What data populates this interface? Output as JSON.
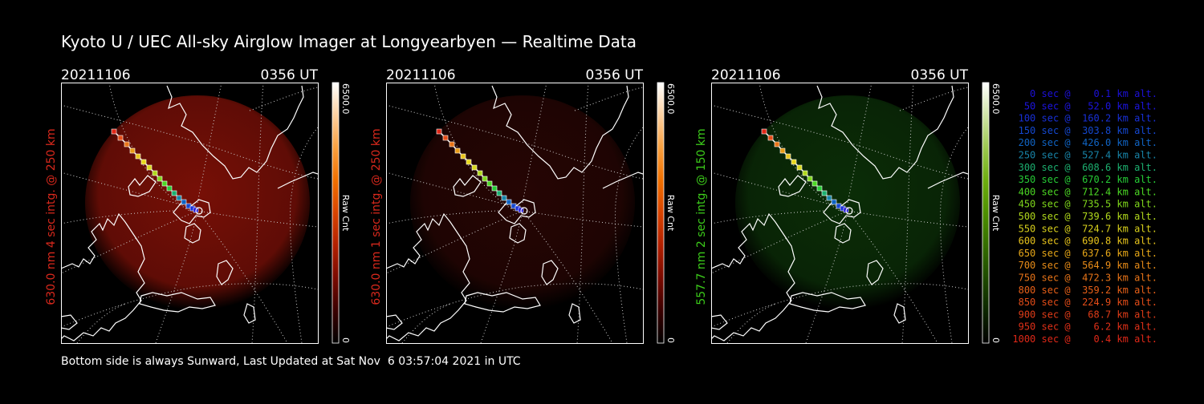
{
  "title": "Kyoto U / UEC All-sky Airglow Imager at Longyearbyen — Realtime Data",
  "footer": "Bottom side is always Sunward, Last Updated at Sat Nov  6 03:57:04 2021 in UTC",
  "panels": [
    {
      "date": "20211106",
      "time": "0356 UT",
      "side_label": "630.0 nm 4 sec intg. @ 250 km",
      "label_color": "#d8281c",
      "colorbar_max": "6500.0",
      "colorbar_min": "0",
      "colorbar_unit": "Raw Cnt",
      "colormap": [
        "#000000",
        "#3a0000",
        "#7a0a00",
        "#b22000",
        "#d84400",
        "#f07000",
        "#f8a040",
        "#fcd0a0",
        "#ffffff"
      ],
      "sky_color": "#8c1208",
      "sky_opacity": 0.85
    },
    {
      "date": "20211106",
      "time": "0356 UT",
      "side_label": "630.0 nm 1 sec intg. @ 250 km",
      "label_color": "#d8281c",
      "colorbar_max": "6500.0",
      "colorbar_min": "0",
      "colorbar_unit": "Raw Cnt",
      "colormap": [
        "#000000",
        "#3a0000",
        "#7a0a00",
        "#b22000",
        "#d84400",
        "#f07000",
        "#f8a040",
        "#fcd0a0",
        "#ffffff"
      ],
      "sky_color": "#2a0604",
      "sky_opacity": 0.9
    },
    {
      "date": "20211106",
      "time": "0356 UT",
      "side_label": "557.7 nm 2 sec intg. @ 150 km",
      "label_color": "#3ccc1a",
      "colorbar_max": "6500.0",
      "colorbar_min": "0",
      "colorbar_unit": "Raw Cnt",
      "colormap": [
        "#000000",
        "#0c2600",
        "#1e4a00",
        "#356e00",
        "#4e9000",
        "#6eae10",
        "#9cc850",
        "#d0e4a8",
        "#ffffff"
      ],
      "sky_color": "#0c3208",
      "sky_opacity": 0.9
    }
  ],
  "legend": [
    {
      "text": "   0 sec @    0.1 km alt.",
      "color": "#1c10d8"
    },
    {
      "text": "  50 sec @   52.0 km alt.",
      "color": "#1c14e0"
    },
    {
      "text": " 100 sec @  160.2 km alt.",
      "color": "#1830d8"
    },
    {
      "text": " 150 sec @  303.8 km alt.",
      "color": "#1448d0"
    },
    {
      "text": " 200 sec @  426.0 km alt.",
      "color": "#1064c4"
    },
    {
      "text": " 250 sec @  527.4 km alt.",
      "color": "#1884a8"
    },
    {
      "text": " 300 sec @  608.6 km alt.",
      "color": "#1cb070"
    },
    {
      "text": " 350 sec @  670.2 km alt.",
      "color": "#26cc36"
    },
    {
      "text": " 400 sec @  712.4 km alt.",
      "color": "#4cd824"
    },
    {
      "text": " 450 sec @  735.5 km alt.",
      "color": "#80d81c"
    },
    {
      "text": " 500 sec @  739.6 km alt.",
      "color": "#b0d81c"
    },
    {
      "text": " 550 sec @  724.7 km alt.",
      "color": "#d8d01c"
    },
    {
      "text": " 600 sec @  690.8 km alt.",
      "color": "#e8c41c"
    },
    {
      "text": " 650 sec @  637.6 km alt.",
      "color": "#e8a818"
    },
    {
      "text": " 700 sec @  564.9 km alt.",
      "color": "#e88c18"
    },
    {
      "text": " 750 sec @  472.3 km alt.",
      "color": "#e87418"
    },
    {
      "text": " 800 sec @  359.2 km alt.",
      "color": "#e86018"
    },
    {
      "text": " 850 sec @  224.9 km alt.",
      "color": "#e44c18"
    },
    {
      "text": " 900 sec @   68.7 km alt.",
      "color": "#e03c18"
    },
    {
      "text": " 950 sec @    6.2 km alt.",
      "color": "#e03018"
    },
    {
      "text": "1000 sec @    0.4 km alt.",
      "color": "#e02818"
    }
  ]
}
